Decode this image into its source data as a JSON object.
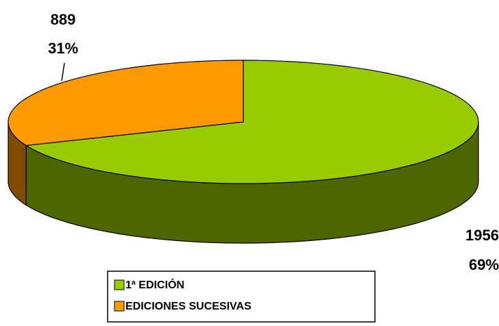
{
  "chart_data": {
    "type": "pie",
    "categories": [
      "1ª EDICIÓN",
      "EDICIONES SUCESIVAS"
    ],
    "values": [
      1956,
      889
    ],
    "percent_labels": [
      "69%",
      "31%"
    ],
    "colors": [
      "#99cc00",
      "#ff9900"
    ],
    "side_colors": [
      "#4d6600",
      "#804d00"
    ],
    "three_d": true,
    "legend": "bottom"
  }
}
